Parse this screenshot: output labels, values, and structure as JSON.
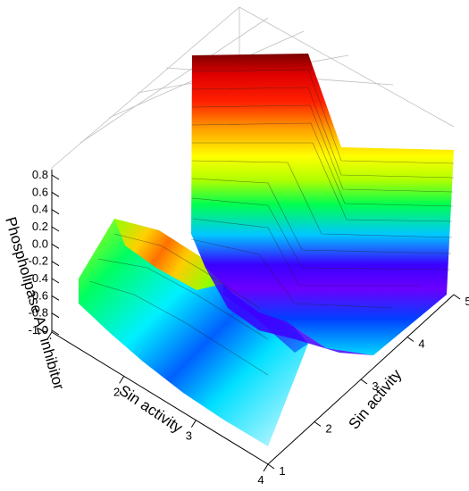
{
  "chart_data": {
    "type": "surface3d",
    "title": "",
    "zlabel": "Phospholipase A2 inhibitor",
    "xlabel": "Sin activity",
    "ylabel": "Sin activity",
    "z_ticks": [
      "0.8",
      "0.6",
      "0.4",
      "0.2",
      "0.0",
      "-0.2",
      "-0.4",
      "-0.6",
      "-0.8",
      "-1.0"
    ],
    "x_ticks": [
      "1",
      "2",
      "3",
      "4"
    ],
    "y_ticks": [
      "1",
      "2",
      "3",
      "4",
      "5"
    ],
    "zlim": [
      -1.0,
      0.8
    ],
    "grid": true,
    "colormap": [
      "#e0f8ff",
      "#00e0ff",
      "#0050ff",
      "#7000ff",
      "#00ff40",
      "#c0ff00",
      "#ffff00",
      "#ffa000",
      "#ff2000",
      "#e00000",
      "#700000"
    ],
    "series": [
      {
        "name": "",
        "kind": "low-sheet",
        "description_values": [
          [
            -0.95,
            -0.7,
            -0.5,
            -0.3
          ],
          [
            -0.9,
            -0.6,
            -0.3,
            -0.1
          ]
        ]
      },
      {
        "name": "",
        "kind": "high-wall",
        "description_values": [
          [
            -0.9,
            -0.2,
            0.8,
            0.8
          ],
          [
            -0.9,
            -0.1,
            0.5,
            0.6
          ]
        ]
      }
    ]
  }
}
